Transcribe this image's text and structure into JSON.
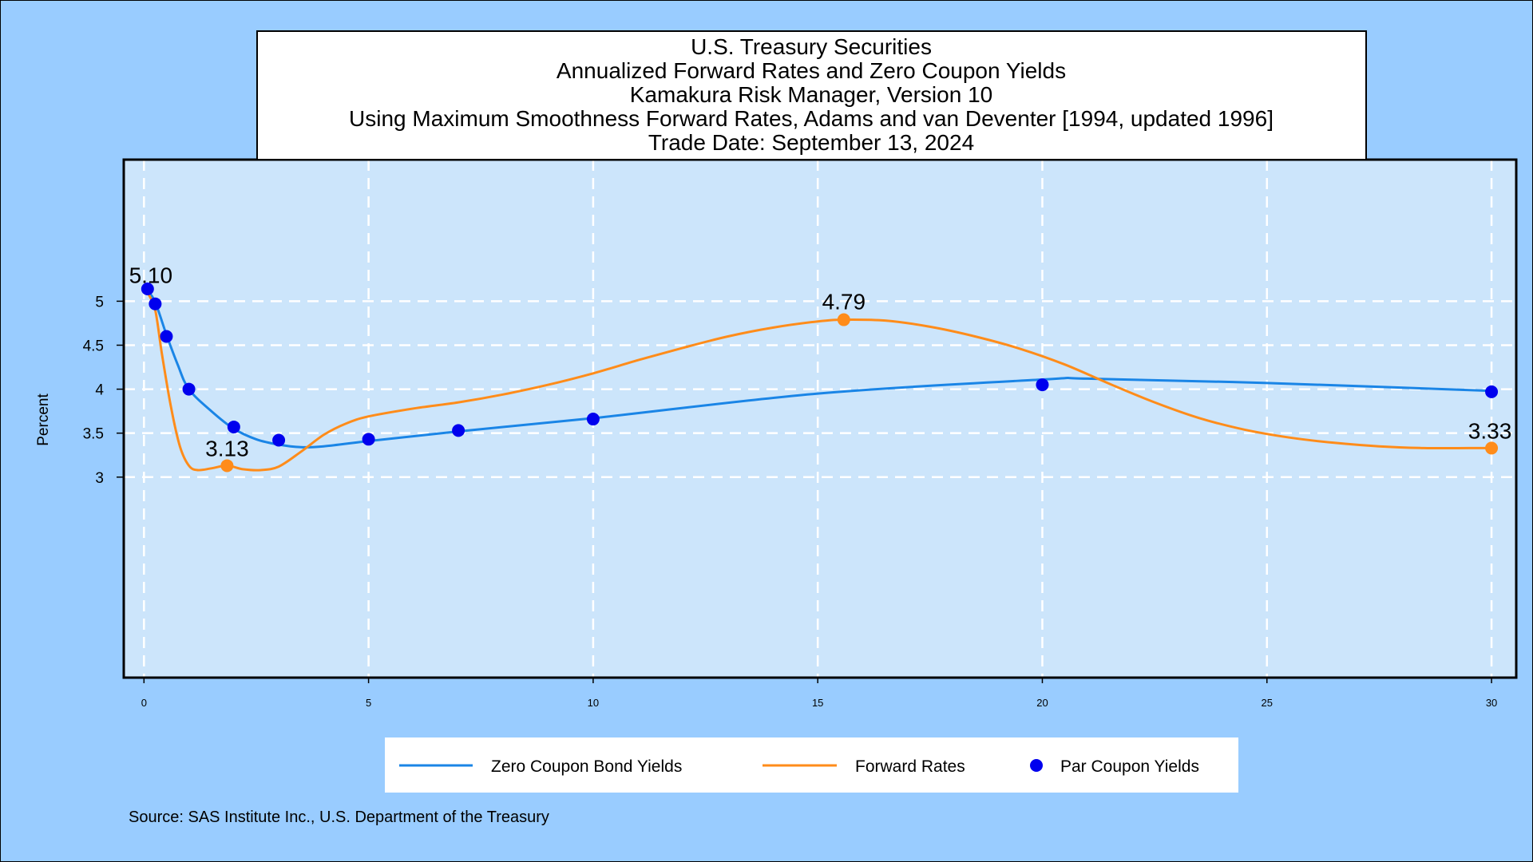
{
  "colors": {
    "page_bg": "#99ccff",
    "plot_bg": "#cce5fb",
    "grid": "#ffffff",
    "zero_line": "#1a85e6",
    "forward_line": "#ff8c1a",
    "par_dot": "#0000ee"
  },
  "chart_data": {
    "type": "line",
    "title_lines": [
      "U.S. Treasury Securities",
      "Annualized Forward Rates and Zero Coupon Yields",
      "Kamakura Risk Manager, Version 10",
      "Using Maximum Smoothness Forward Rates, Adams and van Deventer [1994, updated 1996]",
      "Trade Date: September 13, 2024"
    ],
    "ylabel": "Percent",
    "xlabel": "",
    "xlim": [
      -0.45,
      30.55
    ],
    "ylim": [
      0.72,
      6.61
    ],
    "x_ticks": [
      0,
      5,
      10,
      15,
      20,
      25,
      30
    ],
    "x_tick_labels": [
      "0",
      "5",
      "10",
      "15",
      "20",
      "25",
      "30"
    ],
    "y_ticks": [
      3,
      3.5,
      4,
      4.5,
      5
    ],
    "y_tick_labels": [
      "3",
      "3.5",
      "4",
      "4.5",
      "5"
    ],
    "grid": true,
    "legend_position": "bottom",
    "series": [
      {
        "name": "Zero Coupon Bond Yields",
        "type": "line",
        "color": "#1a85e6",
        "x": [
          0.08,
          0.25,
          0.5,
          0.75,
          1,
          1.5,
          2,
          2.5,
          3,
          3.5,
          4,
          5,
          7,
          10,
          15,
          20,
          21,
          25,
          30
        ],
        "y": [
          5.12,
          4.99,
          4.62,
          4.28,
          4.0,
          3.75,
          3.55,
          3.43,
          3.37,
          3.34,
          3.35,
          3.41,
          3.52,
          3.67,
          3.95,
          4.11,
          4.12,
          4.07,
          3.98
        ]
      },
      {
        "name": "Forward Rates",
        "type": "line",
        "color": "#ff8c1a",
        "x": [
          0.08,
          0.25,
          0.4,
          0.6,
          0.8,
          1.0,
          1.2,
          1.5,
          1.85,
          2.2,
          2.6,
          3.0,
          3.5,
          4.0,
          4.5,
          5.0,
          6.0,
          7.0,
          8.0,
          9.0,
          10.0,
          11.0,
          12.0,
          13.0,
          14.0,
          15.0,
          15.58,
          16.5,
          17.5,
          18.5,
          19.5,
          20.5,
          21.5,
          22.5,
          23.5,
          24.5,
          25.5,
          26.5,
          27.5,
          28.5,
          29.5,
          30.0
        ],
        "y": [
          5.1,
          4.9,
          4.4,
          3.8,
          3.35,
          3.13,
          3.08,
          3.1,
          3.13,
          3.09,
          3.08,
          3.12,
          3.29,
          3.48,
          3.61,
          3.69,
          3.78,
          3.85,
          3.94,
          4.05,
          4.18,
          4.33,
          4.47,
          4.6,
          4.7,
          4.77,
          4.79,
          4.78,
          4.71,
          4.6,
          4.46,
          4.28,
          4.06,
          3.85,
          3.67,
          3.54,
          3.45,
          3.39,
          3.35,
          3.33,
          3.33,
          3.33
        ]
      },
      {
        "name": "Par Coupon Yields",
        "type": "scatter",
        "color": "#0000ee",
        "x": [
          0.08,
          0.25,
          0.5,
          1,
          2,
          3,
          5,
          7,
          10,
          20,
          30
        ],
        "y": [
          5.14,
          4.97,
          4.6,
          4.0,
          3.57,
          3.42,
          3.43,
          3.53,
          3.66,
          4.05,
          3.97
        ]
      }
    ],
    "annotations": [
      {
        "label": "5.10",
        "x": 0.08,
        "y": 5.1,
        "series": "Forward Rates",
        "marker": false
      },
      {
        "label": "3.13",
        "x": 1.85,
        "y": 3.13,
        "series": "Forward Rates",
        "marker": true
      },
      {
        "label": "4.79",
        "x": 15.58,
        "y": 4.79,
        "series": "Forward Rates",
        "marker": true
      },
      {
        "label": "3.33",
        "x": 30.0,
        "y": 3.33,
        "series": "Forward Rates",
        "marker": true
      }
    ],
    "legend": [
      {
        "label": "Zero Coupon Bond Yields",
        "kind": "line",
        "color": "#1a85e6"
      },
      {
        "label": "Forward Rates",
        "kind": "line",
        "color": "#ff8c1a"
      },
      {
        "label": "Par Coupon Yields",
        "kind": "dot",
        "color": "#0000ee"
      }
    ],
    "source": "Source: SAS Institute Inc., U.S. Department of the Treasury"
  }
}
